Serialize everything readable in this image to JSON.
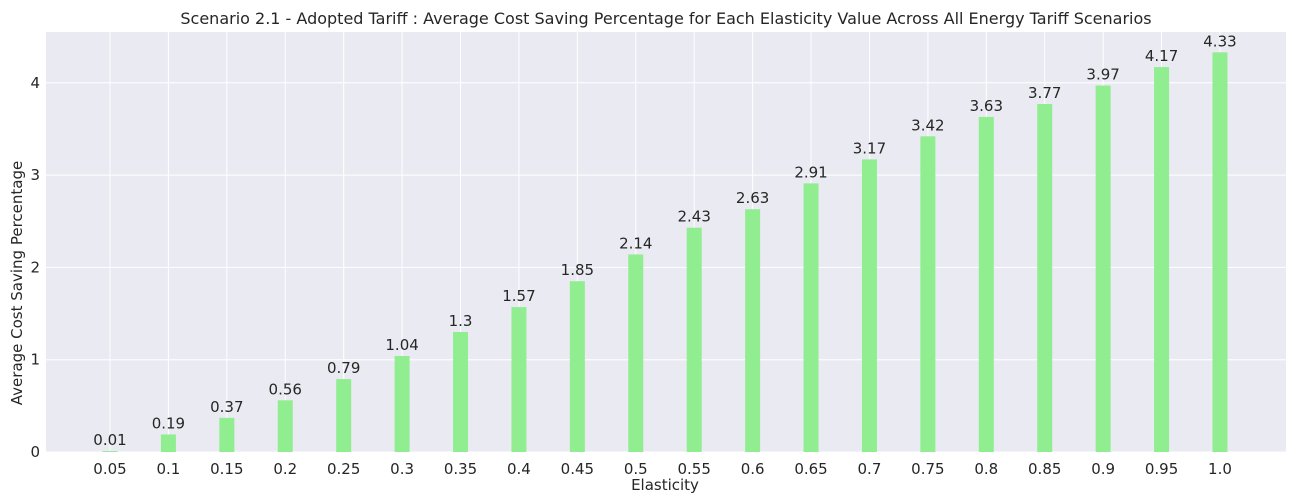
{
  "chart_data": {
    "type": "bar",
    "title": "Scenario 2.1 - Adopted Tariff : Average Cost Saving Percentage for Each Elasticity Value Across All Energy Tariff Scenarios",
    "xlabel": "Elasticity",
    "ylabel": "Average Cost Saving Percentage",
    "categories": [
      "0.05",
      "0.1",
      "0.15",
      "0.2",
      "0.25",
      "0.3",
      "0.35",
      "0.4",
      "0.45",
      "0.5",
      "0.55",
      "0.6",
      "0.65",
      "0.7",
      "0.75",
      "0.8",
      "0.85",
      "0.9",
      "0.95",
      "1.0"
    ],
    "values": [
      0.01,
      0.19,
      0.37,
      0.56,
      0.79,
      1.04,
      1.3,
      1.57,
      1.85,
      2.14,
      2.43,
      2.63,
      2.91,
      3.17,
      3.42,
      3.63,
      3.77,
      3.97,
      4.17,
      4.33
    ],
    "value_labels": [
      "0.01",
      "0.19",
      "0.37",
      "0.56",
      "0.79",
      "1.04",
      "1.3",
      "1.57",
      "1.85",
      "2.14",
      "2.43",
      "2.63",
      "2.91",
      "3.17",
      "3.42",
      "3.63",
      "3.77",
      "3.97",
      "4.17",
      "4.33"
    ],
    "yticks": [
      "0",
      "1",
      "2",
      "3",
      "4"
    ],
    "ylim": [
      0,
      4.55
    ],
    "grid": true,
    "bar_color": "#90ee90",
    "plot_background": "#eaeaf2",
    "grid_color": "#ffffff"
  }
}
